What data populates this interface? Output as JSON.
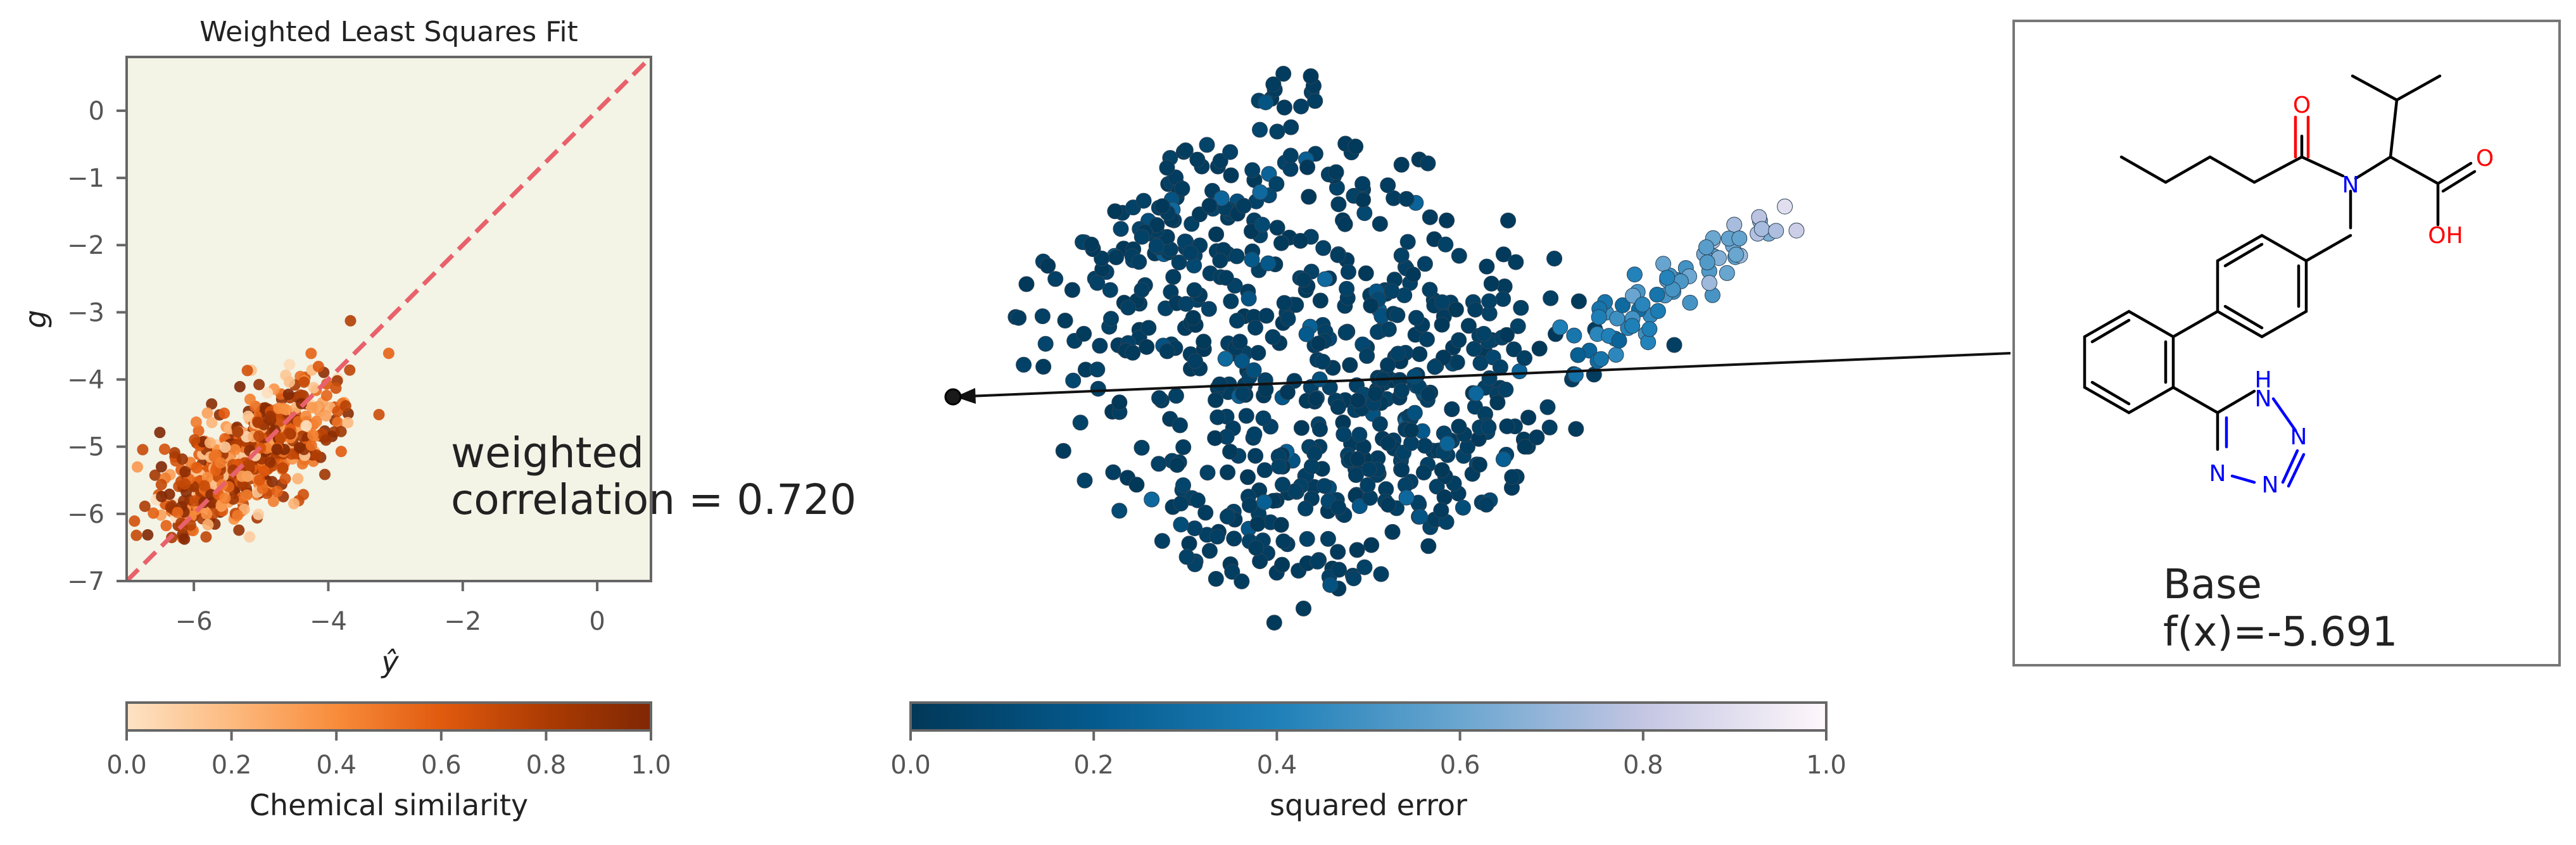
{
  "chart_data": [
    {
      "type": "scatter",
      "title": "Weighted Least Squares Fit",
      "xlabel": "ŷ",
      "ylabel": "g",
      "xlim": [
        -7.0,
        0.8
      ],
      "ylim": [
        -7.0,
        0.8
      ],
      "xticks": [
        "−6",
        "−4",
        "−2",
        "0"
      ],
      "yticks": [
        "0",
        "−1",
        "−2",
        "−3",
        "−4",
        "−5",
        "−6",
        "−7"
      ],
      "background": "#f3f3e6",
      "reference_line": {
        "style": "dashed",
        "color": "#e8616b",
        "from": [
          -7.0,
          -7.0
        ],
        "to": [
          0.8,
          0.8
        ]
      },
      "annotation": [
        "weighted",
        "correlation = 0.720"
      ],
      "color_by": "Chemical similarity",
      "cluster": {
        "center": [
          -5.3,
          -5.2
        ],
        "x_spread": 0.7,
        "y_spread": 0.55,
        "count": 600,
        "x_range": [
          -6.9,
          -2.4
        ],
        "y_range": [
          -6.4,
          -3.0
        ]
      },
      "colorbar": {
        "label": "Chemical similarity",
        "ticks": [
          "0.0",
          "0.2",
          "0.4",
          "0.6",
          "0.8",
          "1.0"
        ],
        "colors": [
          "#fde3c5",
          "#fdba7f",
          "#f88c3b",
          "#e15a0e",
          "#ac3b03",
          "#7f2704"
        ]
      }
    },
    {
      "type": "scatter",
      "axes": "off",
      "color_by": "squared error",
      "point_count": 900,
      "highlighted_point": "base molecule (arrow origin)",
      "colorbar": {
        "label": "squared error",
        "ticks": [
          "0.0",
          "0.2",
          "0.4",
          "0.6",
          "0.8",
          "1.0"
        ],
        "colors": [
          "#023858",
          "#045a8d",
          "#1f80b8",
          "#6aa6d0",
          "#c4c6e3",
          "#fff7fb"
        ]
      }
    }
  ],
  "molecule_panel": {
    "name": "Base",
    "value_text": "f(x)=-5.691",
    "atoms": {
      "O1": "O",
      "O2": "O",
      "OH": "OH",
      "N": "N",
      "NH": "H\nN",
      "N2": "N",
      "N3": "N",
      "N4": "N"
    },
    "atom_colors": {
      "O": "#ff0000",
      "N": "#0000ff"
    }
  }
}
